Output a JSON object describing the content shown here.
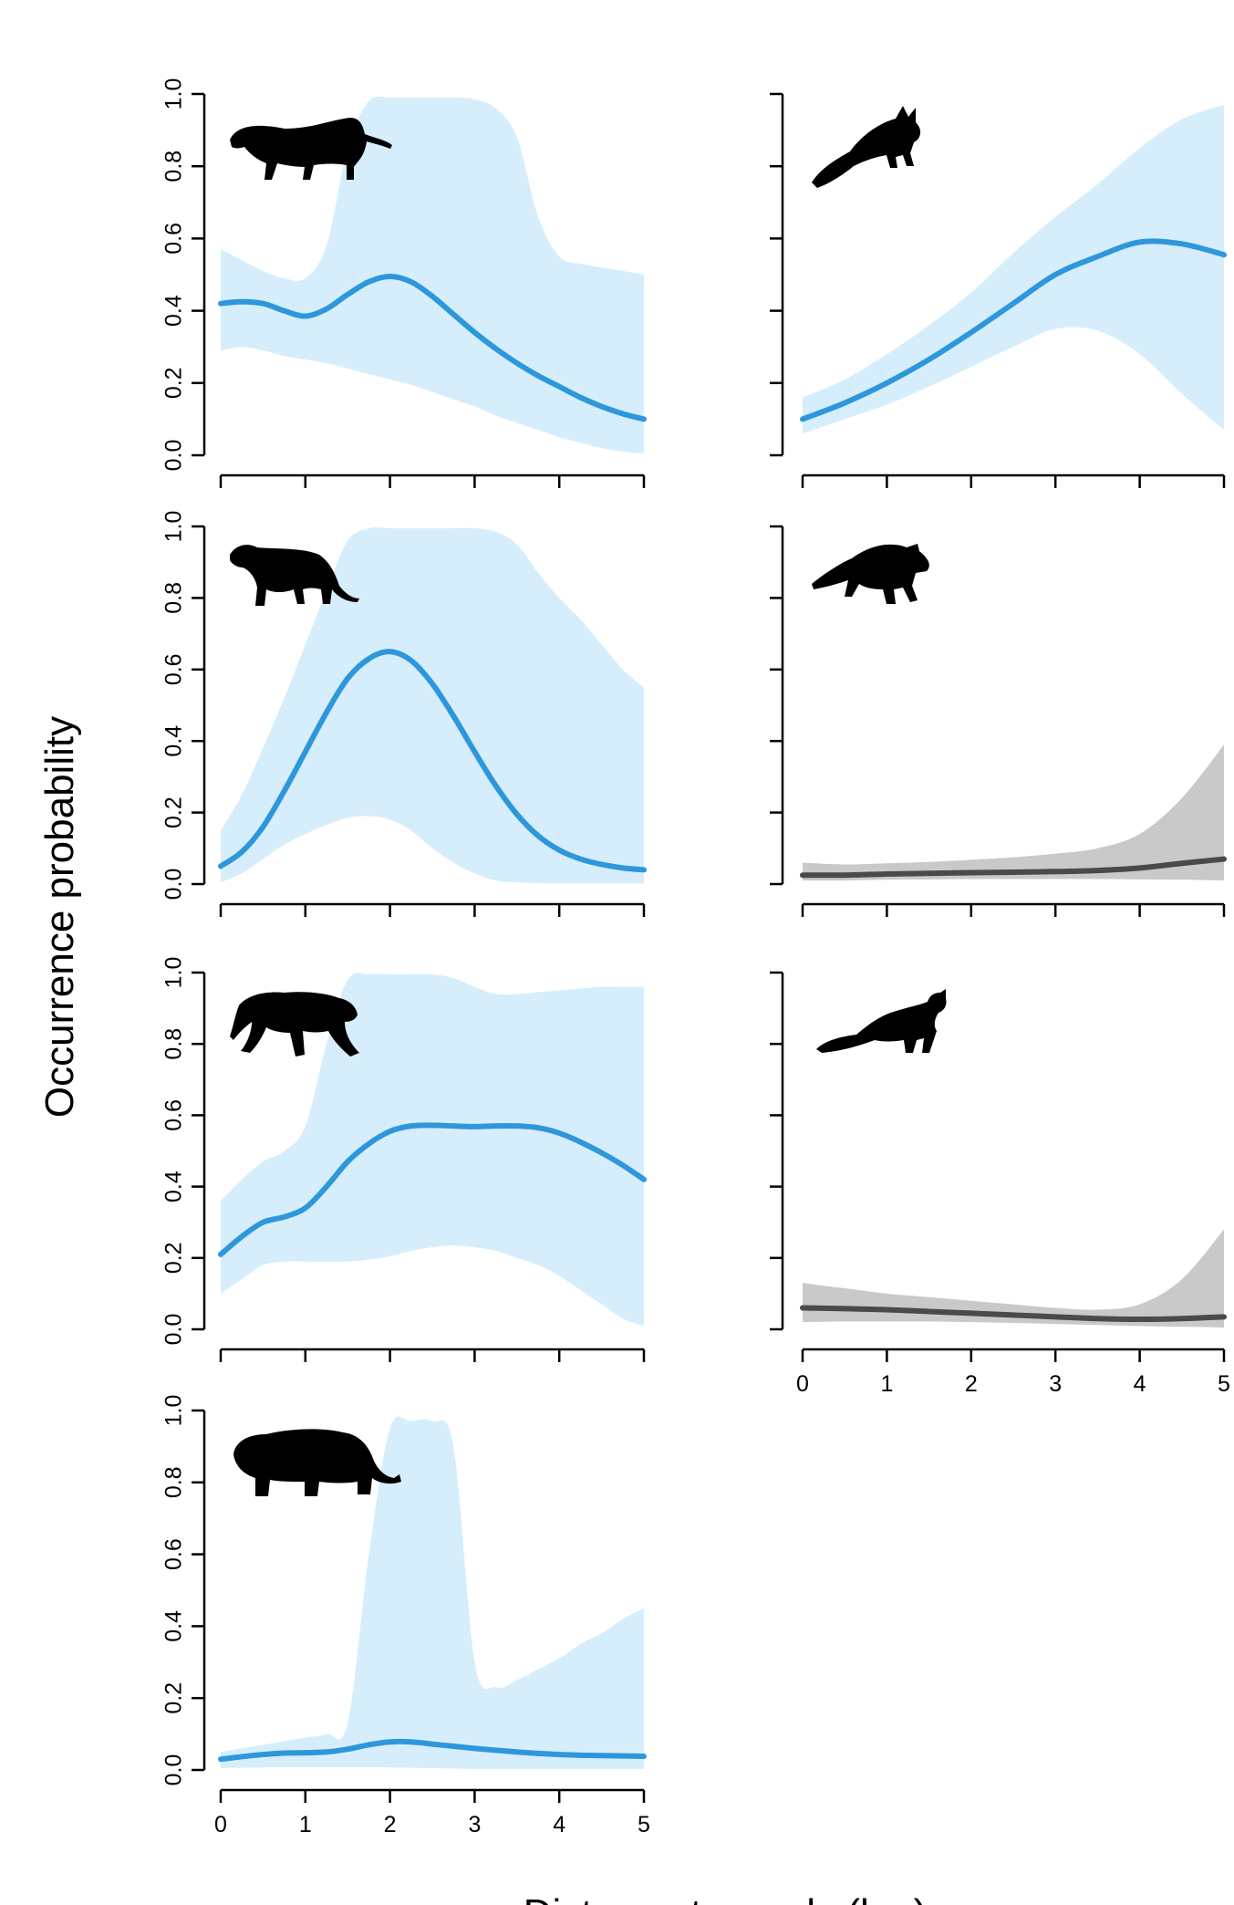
{
  "figure": {
    "ylabel": "Occurrence probability",
    "xlabel": "Distance to roads (km)"
  },
  "colors": {
    "blue_line": "#2e97dc",
    "blue_band": "#d6eefb",
    "gray_line": "#4a4a4a",
    "gray_band": "#c9c9c9",
    "silhouette": "#000000"
  },
  "chart_data": [
    {
      "type": "line",
      "panel": "left-1",
      "animal_icon": "small-cat-silhouette-icon",
      "color_scheme": "blue",
      "x": [
        0,
        0.25,
        0.5,
        0.75,
        1,
        1.25,
        1.5,
        1.75,
        2,
        2.25,
        2.5,
        2.75,
        3,
        3.25,
        3.5,
        3.75,
        4,
        4.25,
        4.5,
        4.75,
        5
      ],
      "y": [
        0.42,
        0.425,
        0.42,
        0.4,
        0.385,
        0.405,
        0.445,
        0.48,
        0.495,
        0.48,
        0.44,
        0.39,
        0.34,
        0.295,
        0.255,
        0.22,
        0.19,
        0.16,
        0.135,
        0.115,
        0.1
      ],
      "lower": [
        0.29,
        0.3,
        0.29,
        0.275,
        0.265,
        0.255,
        0.24,
        0.225,
        0.21,
        0.195,
        0.175,
        0.155,
        0.135,
        0.11,
        0.09,
        0.07,
        0.05,
        0.035,
        0.02,
        0.01,
        0.005
      ],
      "upper": [
        0.57,
        0.54,
        0.51,
        0.49,
        0.49,
        0.58,
        0.85,
        0.98,
        0.99,
        0.99,
        0.99,
        0.99,
        0.985,
        0.96,
        0.88,
        0.66,
        0.55,
        0.53,
        0.52,
        0.51,
        0.5
      ],
      "xlim": [
        0,
        5
      ],
      "ylim": [
        0,
        1
      ],
      "yticks": [
        "0.0",
        "0.2",
        "0.4",
        "0.6",
        "0.8",
        "1.0"
      ],
      "xticks": [
        "",
        "",
        "",
        "",
        "",
        ""
      ]
    },
    {
      "type": "line",
      "panel": "right-1",
      "animal_icon": "fox-silhouette-icon",
      "color_scheme": "blue",
      "x": [
        0,
        0.5,
        1,
        1.5,
        2,
        2.5,
        3,
        3.5,
        4,
        4.5,
        5
      ],
      "y": [
        0.1,
        0.145,
        0.2,
        0.265,
        0.34,
        0.42,
        0.5,
        0.55,
        0.59,
        0.585,
        0.555
      ],
      "lower": [
        0.06,
        0.1,
        0.14,
        0.19,
        0.245,
        0.3,
        0.35,
        0.345,
        0.28,
        0.17,
        0.07
      ],
      "upper": [
        0.16,
        0.21,
        0.28,
        0.36,
        0.45,
        0.56,
        0.66,
        0.75,
        0.85,
        0.93,
        0.97
      ],
      "xlim": [
        0,
        5
      ],
      "ylim": [
        0,
        1
      ],
      "yticks": [
        "",
        "",
        "",
        "",
        "",
        ""
      ],
      "xticks": [
        "",
        "",
        "",
        "",
        "",
        ""
      ]
    },
    {
      "type": "line",
      "panel": "left-2",
      "animal_icon": "jaguarundi-silhouette-icon",
      "color_scheme": "blue",
      "x": [
        0,
        0.25,
        0.5,
        0.75,
        1,
        1.25,
        1.5,
        1.75,
        2,
        2.25,
        2.5,
        2.75,
        3,
        3.25,
        3.5,
        3.75,
        4,
        4.25,
        4.5,
        4.75,
        5
      ],
      "y": [
        0.05,
        0.09,
        0.16,
        0.26,
        0.37,
        0.48,
        0.575,
        0.63,
        0.65,
        0.625,
        0.56,
        0.47,
        0.37,
        0.275,
        0.195,
        0.135,
        0.095,
        0.07,
        0.055,
        0.045,
        0.04
      ],
      "lower": [
        0.005,
        0.03,
        0.07,
        0.11,
        0.14,
        0.165,
        0.185,
        0.19,
        0.18,
        0.15,
        0.1,
        0.06,
        0.03,
        0.01,
        0.005,
        0.002,
        0.002,
        0.002,
        0.002,
        0.002,
        0.002
      ],
      "upper": [
        0.15,
        0.25,
        0.38,
        0.52,
        0.67,
        0.82,
        0.96,
        0.995,
        0.995,
        0.995,
        0.995,
        0.995,
        0.995,
        0.985,
        0.95,
        0.87,
        0.8,
        0.74,
        0.67,
        0.6,
        0.55
      ],
      "xlim": [
        0,
        5
      ],
      "ylim": [
        0,
        1
      ],
      "yticks": [
        "0.0",
        "0.2",
        "0.4",
        "0.6",
        "0.8",
        "1.0"
      ],
      "xticks": [
        "",
        "",
        "",
        "",
        "",
        ""
      ]
    },
    {
      "type": "line",
      "panel": "right-2",
      "animal_icon": "coati-silhouette-icon",
      "color_scheme": "gray",
      "x": [
        0,
        0.5,
        1,
        1.5,
        2,
        2.5,
        3,
        3.5,
        4,
        4.5,
        5
      ],
      "y": [
        0.025,
        0.025,
        0.028,
        0.03,
        0.032,
        0.033,
        0.035,
        0.038,
        0.045,
        0.058,
        0.07
      ],
      "lower": [
        0.01,
        0.01,
        0.012,
        0.013,
        0.014,
        0.014,
        0.014,
        0.014,
        0.013,
        0.012,
        0.01
      ],
      "upper": [
        0.06,
        0.055,
        0.058,
        0.062,
        0.068,
        0.075,
        0.085,
        0.1,
        0.14,
        0.24,
        0.39
      ],
      "xlim": [
        0,
        5
      ],
      "ylim": [
        0,
        1
      ],
      "yticks": [
        "",
        "",
        "",
        "",
        "",
        ""
      ],
      "xticks": [
        "",
        "",
        "",
        "",
        "",
        ""
      ]
    },
    {
      "type": "line",
      "panel": "left-3",
      "animal_icon": "ocelot-silhouette-icon",
      "color_scheme": "blue",
      "x": [
        0,
        0.25,
        0.5,
        0.75,
        1,
        1.25,
        1.5,
        1.75,
        2,
        2.25,
        2.5,
        2.75,
        3,
        3.25,
        3.5,
        3.75,
        4,
        4.25,
        4.5,
        4.75,
        5
      ],
      "y": [
        0.21,
        0.26,
        0.3,
        0.315,
        0.34,
        0.4,
        0.47,
        0.52,
        0.555,
        0.57,
        0.572,
        0.57,
        0.568,
        0.57,
        0.57,
        0.565,
        0.55,
        0.525,
        0.495,
        0.46,
        0.42
      ],
      "lower": [
        0.1,
        0.14,
        0.18,
        0.19,
        0.19,
        0.19,
        0.19,
        0.195,
        0.205,
        0.22,
        0.23,
        0.235,
        0.23,
        0.22,
        0.2,
        0.18,
        0.15,
        0.11,
        0.07,
        0.03,
        0.01
      ],
      "upper": [
        0.36,
        0.42,
        0.47,
        0.5,
        0.57,
        0.8,
        0.98,
        0.995,
        0.995,
        0.995,
        0.995,
        0.985,
        0.96,
        0.94,
        0.94,
        0.945,
        0.95,
        0.955,
        0.96,
        0.96,
        0.96
      ],
      "xlim": [
        0,
        5
      ],
      "ylim": [
        0,
        1
      ],
      "yticks": [
        "0.0",
        "0.2",
        "0.4",
        "0.6",
        "0.8",
        "1.0"
      ],
      "xticks": [
        "",
        "",
        "",
        "",
        "",
        ""
      ]
    },
    {
      "type": "line",
      "panel": "right-3",
      "animal_icon": "tayra-silhouette-icon",
      "color_scheme": "gray",
      "x": [
        0,
        0.5,
        1,
        1.5,
        2,
        2.5,
        3,
        3.5,
        4,
        4.5,
        5
      ],
      "y": [
        0.06,
        0.058,
        0.055,
        0.05,
        0.045,
        0.04,
        0.035,
        0.03,
        0.028,
        0.03,
        0.035
      ],
      "lower": [
        0.02,
        0.022,
        0.022,
        0.022,
        0.02,
        0.018,
        0.015,
        0.012,
        0.009,
        0.007,
        0.005
      ],
      "upper": [
        0.13,
        0.115,
        0.1,
        0.09,
        0.08,
        0.07,
        0.06,
        0.055,
        0.07,
        0.14,
        0.28
      ],
      "xlim": [
        0,
        5
      ],
      "ylim": [
        0,
        1
      ],
      "yticks": [
        "",
        "",
        "",
        "",
        "",
        ""
      ],
      "xticks": [
        "0",
        "1",
        "2",
        "3",
        "4",
        "5"
      ]
    },
    {
      "type": "line",
      "panel": "left-4",
      "animal_icon": "puma-silhouette-icon",
      "color_scheme": "blue",
      "x": [
        0,
        0.25,
        0.5,
        0.75,
        1,
        1.25,
        1.5,
        1.75,
        2,
        2.25,
        2.5,
        2.75,
        3,
        3.25,
        3.5,
        3.75,
        4,
        4.25,
        4.5,
        4.75,
        5
      ],
      "y": [
        0.03,
        0.037,
        0.043,
        0.047,
        0.048,
        0.05,
        0.058,
        0.07,
        0.078,
        0.078,
        0.072,
        0.066,
        0.06,
        0.055,
        0.05,
        0.046,
        0.043,
        0.041,
        0.04,
        0.039,
        0.038
      ],
      "lower": [
        0.005,
        0.006,
        0.007,
        0.008,
        0.008,
        0.008,
        0.008,
        0.008,
        0.007,
        0.006,
        0.005,
        0.004,
        0.003,
        0.003,
        0.003,
        0.003,
        0.003,
        0.003,
        0.003,
        0.003,
        0.003
      ],
      "upper": [
        0.05,
        0.06,
        0.07,
        0.08,
        0.09,
        0.1,
        0.13,
        0.6,
        0.95,
        0.97,
        0.97,
        0.9,
        0.3,
        0.23,
        0.25,
        0.28,
        0.31,
        0.35,
        0.38,
        0.42,
        0.45
      ],
      "xlim": [
        0,
        5
      ],
      "ylim": [
        0,
        1
      ],
      "yticks": [
        "0.0",
        "0.2",
        "0.4",
        "0.6",
        "0.8",
        "1.0"
      ],
      "xticks": [
        "0",
        "1",
        "2",
        "3",
        "4",
        "5"
      ]
    }
  ]
}
